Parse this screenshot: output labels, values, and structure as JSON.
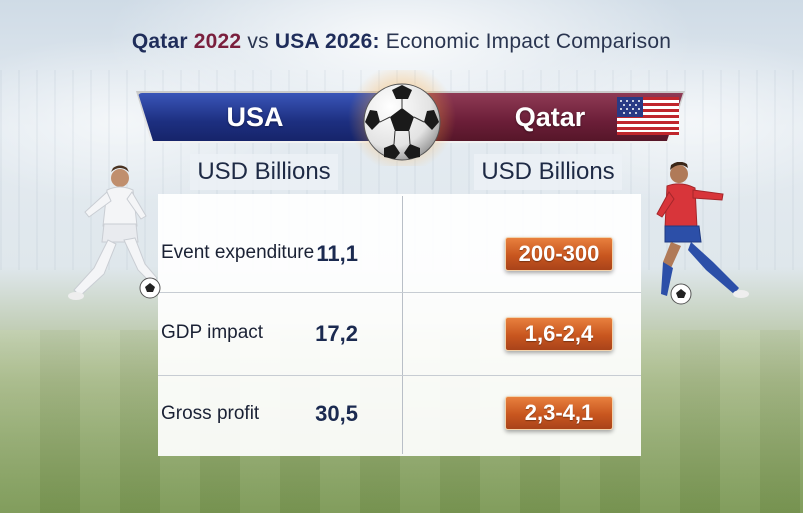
{
  "title": {
    "part1": "Qatar",
    "part2": "2022",
    "part3": "vs",
    "part4": "USA 2026:",
    "part5": "Economic Impact Comparison"
  },
  "banners": {
    "left_label": "USA",
    "right_label": "Qatar"
  },
  "units": {
    "left": "USD Billions",
    "right": "USD Billions"
  },
  "rows": [
    {
      "label": "Event expenditure",
      "usa": "11,1",
      "qatar": "200-300"
    },
    {
      "label": "GDP impact",
      "usa": "17,2",
      "qatar": "1,6-2,4"
    },
    {
      "label": "Gross profit",
      "usa": "30,5",
      "qatar": "2,3-4,1"
    }
  ],
  "colors": {
    "usa_banner": "#1d2f80",
    "qatar_banner": "#6b1e38",
    "badge": "#c8561f",
    "title_qatar": "#7a1f3d"
  },
  "icons": {
    "ball": "soccer-ball-icon",
    "flag": "us-flag-icon",
    "left_player": "soccer-player-white-kit",
    "right_player": "soccer-player-red-kit"
  }
}
